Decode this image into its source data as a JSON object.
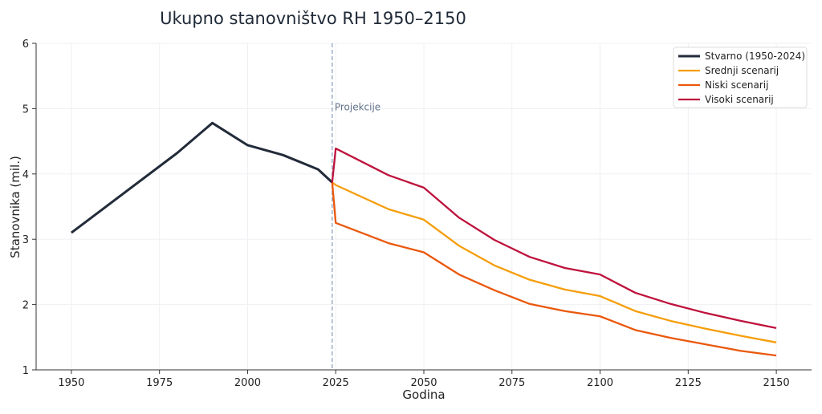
{
  "chart_data": {
    "type": "line",
    "title": "Ukupno stanovništvo RH 1950–2150",
    "xlabel": "Godina",
    "ylabel": "Stanovnika (mil.)",
    "xlim": [
      1940,
      2160
    ],
    "ylim": [
      1,
      6
    ],
    "xticks": [
      1950,
      1975,
      2000,
      2025,
      2050,
      2075,
      2100,
      2125,
      2150
    ],
    "yticks": [
      1,
      2,
      3,
      4,
      5,
      6
    ],
    "grid": true,
    "legend_position": "top-right",
    "annotation": {
      "x": 2024,
      "label": "Projekcije",
      "color": "#8fa3bf"
    },
    "series": [
      {
        "name": "Stvarno (1950-2024)",
        "color": "#222b3a",
        "x": [
          1950,
          1980,
          1990,
          2000,
          2010,
          2020,
          2024
        ],
        "y": [
          3.1,
          4.32,
          4.78,
          4.44,
          4.29,
          4.07,
          3.87
        ]
      },
      {
        "name": "Srednji scenarij",
        "color": "#f59e0b",
        "x": [
          2024,
          2025,
          2040,
          2050,
          2060,
          2070,
          2080,
          2090,
          2100,
          2110,
          2120,
          2130,
          2140,
          2150
        ],
        "y": [
          3.87,
          3.83,
          3.46,
          3.3,
          2.9,
          2.6,
          2.38,
          2.23,
          2.13,
          1.9,
          1.75,
          1.63,
          1.52,
          1.42
        ]
      },
      {
        "name": "Niski scenarij",
        "color": "#ea580c",
        "x": [
          2024,
          2025,
          2040,
          2050,
          2060,
          2070,
          2080,
          2090,
          2100,
          2110,
          2120,
          2130,
          2140,
          2150
        ],
        "y": [
          3.87,
          3.25,
          2.94,
          2.8,
          2.46,
          2.22,
          2.01,
          1.9,
          1.82,
          1.61,
          1.49,
          1.39,
          1.29,
          1.22
        ]
      },
      {
        "name": "Visoki scenarij",
        "color": "#be123c",
        "x": [
          2024,
          2025,
          2040,
          2050,
          2060,
          2070,
          2080,
          2090,
          2100,
          2110,
          2120,
          2130,
          2140,
          2150
        ],
        "y": [
          3.87,
          4.39,
          3.98,
          3.79,
          3.33,
          2.99,
          2.73,
          2.56,
          2.46,
          2.18,
          2.01,
          1.87,
          1.75,
          1.64
        ]
      }
    ]
  }
}
